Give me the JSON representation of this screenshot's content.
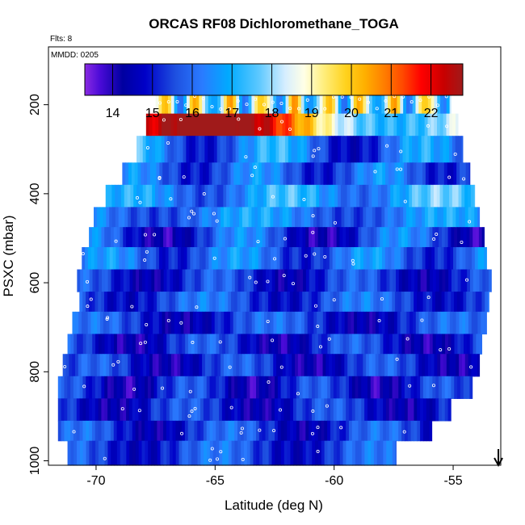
{
  "chart_data": {
    "type": "heatmap",
    "title": "ORCAS RF08 Dichloromethane_TOGA",
    "flights_note": "Flts: 8",
    "date_note": "MMDD: 0205",
    "xlabel": "Latitude (deg N)",
    "ylabel": "PSXC (mbar)",
    "xlim": [
      -72,
      -53
    ],
    "ylim": [
      1010,
      70
    ],
    "x_ticks": [
      -70,
      -65,
      -60,
      -55
    ],
    "x_tick_labels": [
      "-70",
      "-65",
      "-60",
      "-55"
    ],
    "y_ticks": [
      200,
      400,
      600,
      800,
      1000
    ],
    "y_tick_labels": [
      "200",
      "400",
      "600",
      "800",
      "1000"
    ],
    "colorbar": {
      "ticks": [
        14,
        15,
        16,
        17,
        18,
        19,
        20,
        21,
        22
      ],
      "tick_labels": [
        "14",
        "15",
        "16",
        "17",
        "18",
        "19",
        "20",
        "21",
        "22"
      ],
      "range": [
        13.3,
        22.8
      ]
    },
    "arrow_marker": {
      "latitude": -53.1
    },
    "bands": [
      {
        "p_top": 170,
        "p_bottom": 220,
        "lat_start": -67.5,
        "lat_end": -55.1,
        "base": 18.3,
        "amp": 2.0,
        "freq": 9.0,
        "phase": 0.3
      },
      {
        "p_top": 220,
        "p_bottom": 270,
        "lat_start": -67.9,
        "lat_end": -54.8,
        "base": 20.3,
        "amp": 2.2,
        "freq": 1.0,
        "phase": 0.0,
        "trend": -3.6
      },
      {
        "p_top": 270,
        "p_bottom": 330,
        "lat_start": -68.3,
        "lat_end": -54.6,
        "base": 16.0,
        "amp": 1.3,
        "freq": 2.2,
        "phase": 2.0,
        "trend": -0.6
      },
      {
        "p_top": 330,
        "p_bottom": 380,
        "lat_start": -68.9,
        "lat_end": -54.3,
        "base": 15.8,
        "amp": 0.9,
        "freq": 2.8,
        "phase": 1.1
      },
      {
        "p_top": 380,
        "p_bottom": 430,
        "lat_start": -69.6,
        "lat_end": -54.1,
        "base": 16.6,
        "amp": 0.9,
        "freq": 2.4,
        "phase": 0.6,
        "trend": 0.8
      },
      {
        "p_top": 430,
        "p_bottom": 475,
        "lat_start": -70.1,
        "lat_end": -53.9,
        "base": 16.2,
        "amp": 0.8,
        "freq": 2.0,
        "phase": 2.7
      },
      {
        "p_top": 475,
        "p_bottom": 520,
        "lat_start": -70.3,
        "lat_end": -53.7,
        "base": 15.3,
        "amp": 1.3,
        "freq": 2.5,
        "phase": 1.8
      },
      {
        "p_top": 520,
        "p_bottom": 570,
        "lat_start": -70.6,
        "lat_end": -53.6,
        "base": 15.9,
        "amp": 0.9,
        "freq": 3.1,
        "phase": 0.4
      },
      {
        "p_top": 570,
        "p_bottom": 620,
        "lat_start": -70.8,
        "lat_end": -53.4,
        "base": 15.1,
        "amp": 0.8,
        "freq": 3.0,
        "phase": 1.5
      },
      {
        "p_top": 620,
        "p_bottom": 665,
        "lat_start": -70.7,
        "lat_end": -53.5,
        "base": 15.5,
        "amp": 0.8,
        "freq": 2.6,
        "phase": 2.9
      },
      {
        "p_top": 665,
        "p_bottom": 715,
        "lat_start": -71.0,
        "lat_end": -53.6,
        "base": 15.2,
        "amp": 0.9,
        "freq": 2.3,
        "phase": 0.9
      },
      {
        "p_top": 715,
        "p_bottom": 760,
        "lat_start": -71.2,
        "lat_end": -53.8,
        "base": 15.0,
        "amp": 0.9,
        "freq": 2.8,
        "phase": 2.1
      },
      {
        "p_top": 760,
        "p_bottom": 810,
        "lat_start": -71.4,
        "lat_end": -53.9,
        "base": 15.0,
        "amp": 0.9,
        "freq": 2.9,
        "phase": 0.2
      },
      {
        "p_top": 810,
        "p_bottom": 860,
        "lat_start": -71.6,
        "lat_end": -54.2,
        "base": 14.9,
        "amp": 0.9,
        "freq": 3.3,
        "phase": 1.3
      },
      {
        "p_top": 860,
        "p_bottom": 910,
        "lat_start": -71.6,
        "lat_end": -55.1,
        "base": 15.0,
        "amp": 0.8,
        "freq": 2.7,
        "phase": 2.4
      },
      {
        "p_top": 910,
        "p_bottom": 955,
        "lat_start": -71.6,
        "lat_end": -55.9,
        "base": 15.2,
        "amp": 0.9,
        "freq": 2.5,
        "phase": 0.7
      },
      {
        "p_top": 955,
        "p_bottom": 1010,
        "lat_start": -71.2,
        "lat_end": -57.4,
        "base": 15.4,
        "amp": 0.8,
        "freq": 2.1,
        "phase": 1.9
      }
    ]
  }
}
